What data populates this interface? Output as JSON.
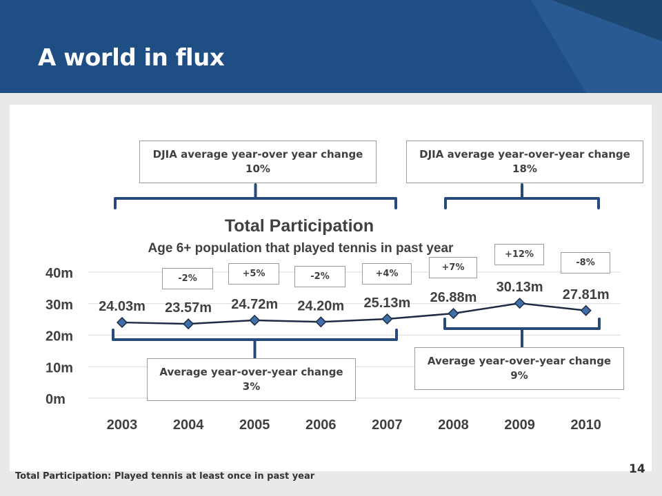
{
  "slide": {
    "title": "A world in flux",
    "page_number": "14",
    "footnote": "Total Participation:  Played tennis at least once in past year",
    "colors": {
      "header": "#1f4e85",
      "header_accent": "#16385f",
      "line": "#1f2a44",
      "marker": "#3f6fa8",
      "bracket": "#274a7a"
    }
  },
  "callouts": {
    "djia_left": {
      "line1": "DJIA average year-over year change",
      "line2": "10%"
    },
    "djia_right": {
      "line1": "DJIA average year-over-year change",
      "line2": "18%"
    },
    "avg_left": {
      "line1": "Average year-over-year change",
      "line2": "3%"
    },
    "avg_right": {
      "line1": "Average year-over-year change",
      "line2": "9%"
    }
  },
  "yoy_changes": [
    "-2%",
    "+5%",
    "-2%",
    "+4%",
    "+7%",
    "+12%",
    "-8%"
  ],
  "chart_data": {
    "type": "line",
    "title": "Total Participation",
    "subtitle": "Age 6+ population that played tennis in past year",
    "categories": [
      "2003",
      "2004",
      "2005",
      "2006",
      "2007",
      "2008",
      "2009",
      "2010"
    ],
    "values": [
      24.03,
      23.57,
      24.72,
      24.2,
      25.13,
      26.88,
      30.13,
      27.81
    ],
    "data_labels": [
      "24.03m",
      "23.57m",
      "24.72m",
      "24.20m",
      "25.13m",
      "26.88m",
      "30.13m",
      "27.81m"
    ],
    "y_ticks": [
      "0m",
      "10m",
      "20m",
      "30m",
      "40m"
    ],
    "y_tick_values": [
      0,
      10,
      20,
      30,
      40
    ],
    "ylim": [
      0,
      40
    ],
    "grid": true
  }
}
